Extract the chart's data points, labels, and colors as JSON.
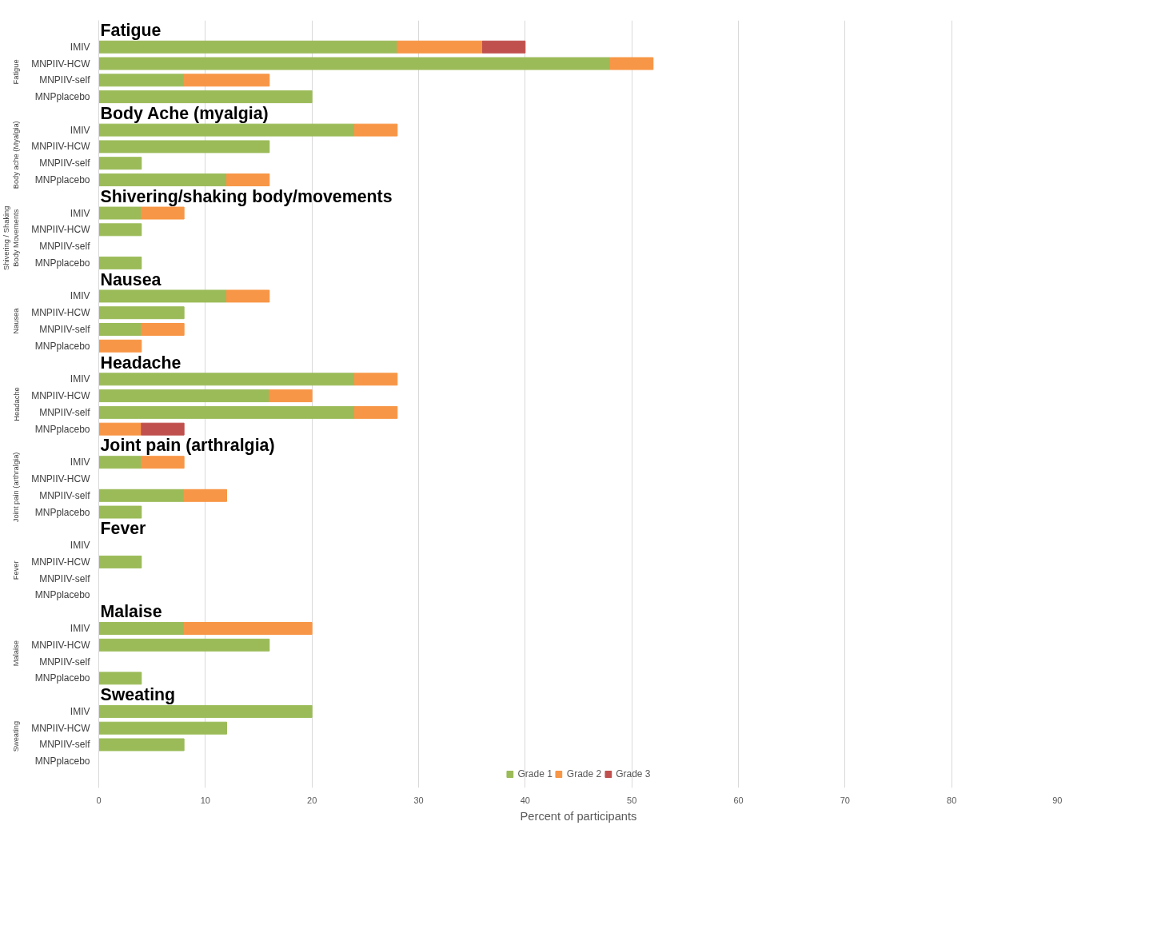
{
  "chart_data": {
    "type": "bar",
    "orientation": "horizontal",
    "stacked": true,
    "categories": [
      null,
      "IMIV",
      "MNPIIV-HCW",
      "MNPIIV-self",
      "MNPplacebo",
      null,
      "IMIV",
      "MNPIIV-HCW",
      "MNPIIV-self",
      "MNPplacebo",
      null,
      "IMIV",
      "MNPIIV-HCW",
      "MNPIIV-self",
      "MNPplacebo",
      null,
      "IMIV",
      "MNPIIV-HCW",
      "MNPIIV-self",
      "MNPplacebo",
      null,
      "IMIV",
      "MNPIIV-HCW",
      "MNPIIV-self",
      "MNPplacebo",
      null,
      "IMIV",
      "MNPIIV-HCW",
      "MNPIIV-self",
      "MNPplacebo",
      null,
      "IMIV",
      "MNPIIV-HCW",
      "MNPIIV-self",
      "MNPplacebo",
      null,
      "IMIV",
      "MNPIIV-HCW",
      "MNPIIV-self",
      "MNPplacebo",
      null,
      "IMIV",
      "MNPIIV-HCW",
      "MNPIIV-self",
      "MNPplacebo"
    ],
    "series": [
      {
        "name": "Grade 1",
        "color": "#9bbb59",
        "values": [
          null,
          28,
          48,
          8,
          20,
          null,
          24,
          16,
          4,
          12,
          null,
          4,
          4,
          null,
          4,
          null,
          12,
          8,
          4,
          null,
          null,
          24,
          16,
          24,
          null,
          null,
          4,
          null,
          8,
          4,
          null,
          null,
          4,
          null,
          null,
          null,
          8,
          16,
          null,
          4,
          null,
          20,
          12,
          8,
          null
        ]
      },
      {
        "name": "Grade 2",
        "color": "#f79646",
        "values": [
          null,
          8,
          4,
          8,
          null,
          null,
          4,
          null,
          null,
          4,
          null,
          4,
          null,
          null,
          null,
          null,
          4,
          null,
          4,
          4,
          null,
          4,
          4,
          4,
          4,
          null,
          4,
          null,
          4,
          null,
          null,
          null,
          null,
          null,
          null,
          null,
          12,
          null,
          null,
          null,
          null,
          null,
          null,
          null,
          null
        ]
      },
      {
        "name": "Grade 3",
        "color": "#c0504d",
        "values": [
          null,
          4,
          null,
          null,
          null,
          null,
          null,
          null,
          null,
          null,
          null,
          null,
          null,
          null,
          null,
          null,
          null,
          null,
          null,
          null,
          null,
          null,
          null,
          null,
          4,
          null,
          null,
          null,
          null,
          null,
          null,
          null,
          null,
          null,
          null,
          null,
          null,
          null,
          null,
          null,
          null,
          null,
          null,
          null,
          null
        ]
      }
    ],
    "xlim": [
      0,
      90
    ],
    "xticks": [
      0,
      10,
      20,
      30,
      40,
      50,
      60,
      70,
      80,
      90
    ],
    "xlabel": "Percent of participants",
    "grid": "x",
    "legend": "bottom",
    "annotations": [
      "Fatigue",
      "Body Ache (myalgia)",
      "Shivering/shaking body/movements",
      "Nausea",
      "Headache",
      "Joint pain (arthralgia)",
      "Fever",
      "Malaise",
      "Sweating",
      "Fatigue",
      "Body ache (Myalgia)",
      "Shivering / Shaking Body Movements",
      "Nausea",
      "Headache",
      "Joint pain (arthralgia)",
      "Fever",
      "Malaise",
      "Sweating"
    ]
  }
}
